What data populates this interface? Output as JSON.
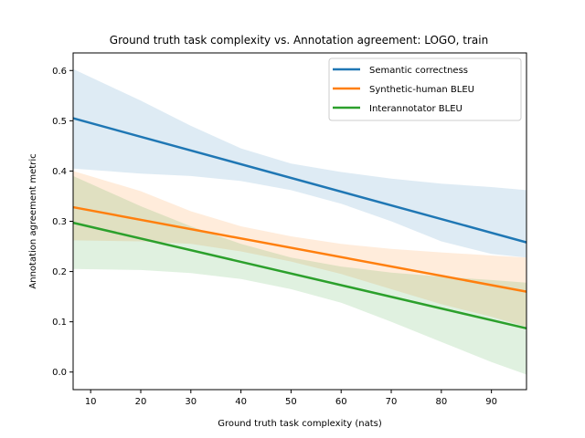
{
  "chart_data": {
    "type": "line",
    "title": "Ground truth task complexity vs. Annotation agreement: LOGO, train",
    "xlabel": "Ground truth task complexity (nats)",
    "ylabel": "Annotation agreement metric",
    "xlim": [
      6.5,
      97
    ],
    "ylim": [
      -0.035,
      0.635
    ],
    "xticks": [
      10,
      20,
      30,
      40,
      50,
      60,
      70,
      80,
      90
    ],
    "yticks": [
      0.0,
      0.1,
      0.2,
      0.3,
      0.4,
      0.5,
      0.6
    ],
    "ytick_labels": [
      "0.0",
      "0.1",
      "0.2",
      "0.3",
      "0.4",
      "0.5",
      "0.6"
    ],
    "grid": false,
    "legend_position": "top-right",
    "series": [
      {
        "name": "Semantic correctness",
        "color": "#1f77b4",
        "x": [
          6.5,
          97
        ],
        "y": [
          0.505,
          0.258
        ],
        "band_x": [
          6.5,
          20,
          30,
          40,
          50,
          60,
          70,
          80,
          90,
          97
        ],
        "band_upper": [
          0.603,
          0.54,
          0.49,
          0.445,
          0.415,
          0.398,
          0.385,
          0.375,
          0.368,
          0.362
        ],
        "band_lower": [
          0.405,
          0.395,
          0.39,
          0.38,
          0.362,
          0.335,
          0.3,
          0.26,
          0.235,
          0.228
        ]
      },
      {
        "name": "Synthetic-human BLEU",
        "color": "#ff7f0e",
        "x": [
          6.5,
          97
        ],
        "y": [
          0.328,
          0.16
        ],
        "band_x": [
          6.5,
          20,
          30,
          40,
          50,
          60,
          70,
          80,
          90,
          97
        ],
        "band_upper": [
          0.4,
          0.36,
          0.32,
          0.29,
          0.27,
          0.255,
          0.245,
          0.238,
          0.232,
          0.228
        ],
        "band_lower": [
          0.262,
          0.26,
          0.255,
          0.24,
          0.22,
          0.195,
          0.165,
          0.135,
          0.11,
          0.09
        ]
      },
      {
        "name": "Interannotator BLEU",
        "color": "#2ca02c",
        "x": [
          6.5,
          97
        ],
        "y": [
          0.297,
          0.087
        ],
        "band_x": [
          6.5,
          20,
          30,
          40,
          50,
          60,
          70,
          80,
          90,
          97
        ],
        "band_upper": [
          0.39,
          0.33,
          0.29,
          0.255,
          0.228,
          0.21,
          0.198,
          0.19,
          0.183,
          0.178
        ],
        "band_lower": [
          0.205,
          0.203,
          0.197,
          0.185,
          0.165,
          0.138,
          0.1,
          0.06,
          0.02,
          -0.005
        ]
      }
    ]
  }
}
